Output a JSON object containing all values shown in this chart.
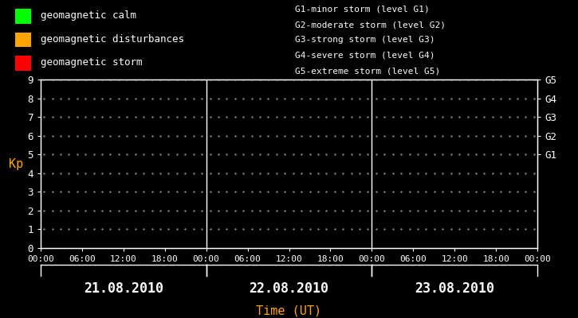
{
  "background_color": "#000000",
  "plot_bg_color": "#000000",
  "text_color": "#ffffff",
  "orange_color": "#ffa500",
  "ylim": [
    0,
    9
  ],
  "yticks": [
    0,
    1,
    2,
    3,
    4,
    5,
    6,
    7,
    8,
    9
  ],
  "ylabel": "Kp",
  "xlabel": "Time (UT)",
  "days": [
    "21.08.2010",
    "22.08.2010",
    "23.08.2010"
  ],
  "time_labels": [
    "00:00",
    "06:00",
    "12:00",
    "18:00",
    "00:00",
    "06:00",
    "12:00",
    "18:00",
    "00:00",
    "06:00",
    "12:00",
    "18:00",
    "00:00"
  ],
  "num_days": 3,
  "g_labels": [
    "G5",
    "G4",
    "G3",
    "G2",
    "G1"
  ],
  "g_levels": [
    9,
    8,
    7,
    6,
    5
  ],
  "legend_items": [
    {
      "label": "geomagnetic calm",
      "color": "#00ff00"
    },
    {
      "label": "geomagnetic disturbances",
      "color": "#ffa500"
    },
    {
      "label": "geomagnetic storm",
      "color": "#ff0000"
    }
  ],
  "storm_labels": [
    "G1-minor storm (level G1)",
    "G2-moderate storm (level G2)",
    "G3-strong storm (level G3)",
    "G4-severe storm (level G4)",
    "G5-extreme storm (level G5)"
  ],
  "vline_color": "#ffffff",
  "axis_color": "#ffffff",
  "font_size": 9,
  "ylabel_fontsize": 11,
  "xlabel_fontsize": 11,
  "day_label_fontsize": 12
}
